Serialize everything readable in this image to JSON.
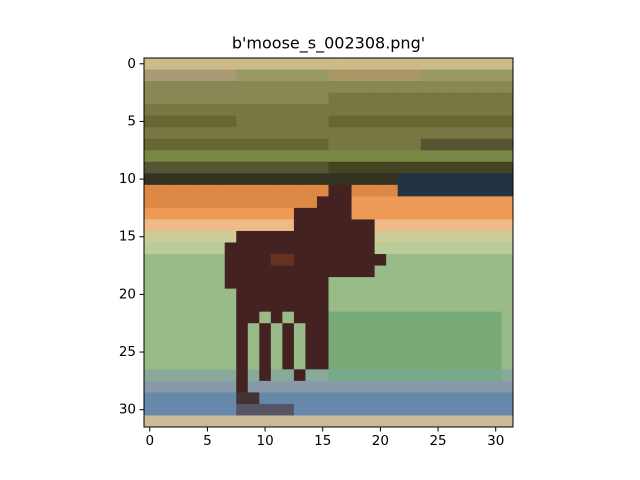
{
  "chart_data": {
    "type": "image",
    "title": "b'moose_s_002308.png'",
    "xlim": [
      -0.5,
      31.5
    ],
    "ylim": [
      31.5,
      -0.5
    ],
    "xticks": [
      0,
      5,
      10,
      15,
      20,
      25,
      30
    ],
    "yticks": [
      0,
      5,
      10,
      15,
      20,
      25,
      30
    ],
    "pixels": [
      [
        "#cb8",
        "#cb8",
        "#cb8",
        "#cb8",
        "#cb8",
        "#cb8",
        "#cb8",
        "#cb8",
        "#cb8",
        "#cb8",
        "#cb8",
        "#cb8",
        "#cb8",
        "#cb8",
        "#cb8",
        "#cb8",
        "#cb8",
        "#cb8",
        "#cb8",
        "#cb8",
        "#cb8",
        "#cb8",
        "#cb8",
        "#cb8",
        "#cb8",
        "#cb8",
        "#cb8",
        "#cb8",
        "#cb8",
        "#cb8",
        "#cb8",
        "#cb8"
      ],
      [
        "#a97",
        "#a97",
        "#a97",
        "#a97",
        "#a97",
        "#a97",
        "#a97",
        "#a97",
        "#996",
        "#996",
        "#996",
        "#996",
        "#996",
        "#996",
        "#996",
        "#996",
        "#a96",
        "#a96",
        "#a96",
        "#a96",
        "#a96",
        "#a96",
        "#a96",
        "#a96",
        "#996",
        "#996",
        "#996",
        "#996",
        "#996",
        "#996",
        "#996",
        "#996"
      ],
      [
        "#885",
        "#885",
        "#885",
        "#885",
        "#885",
        "#885",
        "#885",
        "#885",
        "#885",
        "#885",
        "#885",
        "#885",
        "#885",
        "#885",
        "#885",
        "#885",
        "#885",
        "#885",
        "#885",
        "#885",
        "#885",
        "#885",
        "#885",
        "#885",
        "#885",
        "#885",
        "#885",
        "#885",
        "#885",
        "#885",
        "#885",
        "#885"
      ],
      [
        "#885",
        "#885",
        "#885",
        "#885",
        "#885",
        "#885",
        "#885",
        "#885",
        "#885",
        "#885",
        "#885",
        "#885",
        "#885",
        "#885",
        "#885",
        "#885",
        "#774",
        "#774",
        "#774",
        "#774",
        "#774",
        "#774",
        "#774",
        "#774",
        "#774",
        "#774",
        "#774",
        "#774",
        "#774",
        "#774",
        "#774",
        "#774"
      ],
      [
        "#774",
        "#774",
        "#774",
        "#774",
        "#774",
        "#774",
        "#774",
        "#774",
        "#774",
        "#774",
        "#774",
        "#774",
        "#774",
        "#774",
        "#774",
        "#774",
        "#774",
        "#774",
        "#774",
        "#774",
        "#774",
        "#774",
        "#774",
        "#774",
        "#774",
        "#774",
        "#774",
        "#774",
        "#774",
        "#774",
        "#774",
        "#774"
      ],
      [
        "#663",
        "#663",
        "#663",
        "#663",
        "#663",
        "#663",
        "#663",
        "#663",
        "#774",
        "#774",
        "#774",
        "#774",
        "#774",
        "#774",
        "#774",
        "#774",
        "#663",
        "#663",
        "#663",
        "#663",
        "#663",
        "#663",
        "#663",
        "#663",
        "#663",
        "#663",
        "#663",
        "#663",
        "#663",
        "#663",
        "#663",
        "#663"
      ],
      [
        "#774",
        "#774",
        "#774",
        "#774",
        "#774",
        "#774",
        "#774",
        "#774",
        "#774",
        "#774",
        "#774",
        "#774",
        "#774",
        "#774",
        "#774",
        "#774",
        "#774",
        "#774",
        "#774",
        "#774",
        "#774",
        "#774",
        "#774",
        "#774",
        "#774",
        "#774",
        "#774",
        "#774",
        "#774",
        "#774",
        "#774",
        "#774"
      ],
      [
        "#663",
        "#663",
        "#663",
        "#663",
        "#663",
        "#663",
        "#663",
        "#663",
        "#663",
        "#663",
        "#663",
        "#663",
        "#663",
        "#663",
        "#663",
        "#663",
        "#774",
        "#774",
        "#774",
        "#774",
        "#774",
        "#774",
        "#774",
        "#774",
        "#553",
        "#553",
        "#553",
        "#553",
        "#553",
        "#553",
        "#553",
        "#553"
      ],
      [
        "#784",
        "#784",
        "#784",
        "#784",
        "#784",
        "#784",
        "#784",
        "#784",
        "#784",
        "#784",
        "#784",
        "#784",
        "#784",
        "#784",
        "#784",
        "#784",
        "#784",
        "#784",
        "#784",
        "#784",
        "#784",
        "#784",
        "#784",
        "#784",
        "#784",
        "#784",
        "#784",
        "#784",
        "#784",
        "#784",
        "#784",
        "#784"
      ],
      [
        "#553",
        "#553",
        "#553",
        "#553",
        "#553",
        "#553",
        "#553",
        "#553",
        "#553",
        "#553",
        "#553",
        "#553",
        "#553",
        "#553",
        "#553",
        "#553",
        "#442",
        "#442",
        "#442",
        "#442",
        "#442",
        "#442",
        "#442",
        "#442",
        "#442",
        "#442",
        "#442",
        "#442",
        "#442",
        "#442",
        "#442",
        "#442"
      ],
      [
        "#332",
        "#332",
        "#332",
        "#332",
        "#332",
        "#332",
        "#332",
        "#332",
        "#332",
        "#332",
        "#332",
        "#332",
        "#332",
        "#332",
        "#332",
        "#332",
        "#332",
        "#332",
        "#332",
        "#332",
        "#332",
        "#332",
        "#234",
        "#234",
        "#234",
        "#234",
        "#234",
        "#234",
        "#234",
        "#234",
        "#234",
        "#234"
      ],
      [
        "#d84",
        "#d84",
        "#d84",
        "#d84",
        "#d84",
        "#d84",
        "#d84",
        "#d84",
        "#d84",
        "#d84",
        "#d84",
        "#d84",
        "#d84",
        "#d84",
        "#d84",
        "#d84",
        "#422",
        "#422",
        "#d84",
        "#d84",
        "#d84",
        "#d84",
        "#234",
        "#234",
        "#234",
        "#234",
        "#234",
        "#234",
        "#234",
        "#234",
        "#234",
        "#234"
      ],
      [
        "#d84",
        "#d84",
        "#d84",
        "#d84",
        "#d84",
        "#d84",
        "#d84",
        "#d84",
        "#d84",
        "#d84",
        "#d84",
        "#d84",
        "#d84",
        "#d84",
        "#d84",
        "#422",
        "#422",
        "#422",
        "#e95",
        "#e95",
        "#e95",
        "#e95",
        "#e95",
        "#e95",
        "#e95",
        "#e95",
        "#e95",
        "#e95",
        "#e95",
        "#e95",
        "#e95",
        "#e95"
      ],
      [
        "#e95",
        "#e95",
        "#e95",
        "#e95",
        "#e95",
        "#e95",
        "#e95",
        "#e95",
        "#e95",
        "#e95",
        "#e95",
        "#e95",
        "#e95",
        "#422",
        "#422",
        "#422",
        "#422",
        "#422",
        "#e95",
        "#e95",
        "#e95",
        "#e95",
        "#e95",
        "#e95",
        "#e95",
        "#e95",
        "#e95",
        "#e95",
        "#e95",
        "#e95",
        "#e95",
        "#e95"
      ],
      [
        "#eb8",
        "#eb8",
        "#eb8",
        "#eb8",
        "#eb8",
        "#eb8",
        "#eb8",
        "#eb8",
        "#eb8",
        "#eb8",
        "#eb8",
        "#eb8",
        "#eb8",
        "#422",
        "#422",
        "#422",
        "#422",
        "#422",
        "#422",
        "#422",
        "#eb8",
        "#eb8",
        "#eb8",
        "#eb8",
        "#eb8",
        "#eb8",
        "#eb8",
        "#eb8",
        "#eb8",
        "#eb8",
        "#eb8",
        "#eb8"
      ],
      [
        "#cc9",
        "#cc9",
        "#cc9",
        "#cc9",
        "#cc9",
        "#cc9",
        "#cc9",
        "#cc9",
        "#422",
        "#422",
        "#422",
        "#422",
        "#422",
        "#422",
        "#422",
        "#422",
        "#422",
        "#422",
        "#422",
        "#422",
        "#cc9",
        "#cc9",
        "#cc9",
        "#cc9",
        "#cc9",
        "#cc9",
        "#cc9",
        "#cc9",
        "#cc9",
        "#cc9",
        "#cc9",
        "#cc9"
      ],
      [
        "#bc9",
        "#bc9",
        "#bc9",
        "#bc9",
        "#bc9",
        "#bc9",
        "#bc9",
        "#422",
        "#422",
        "#422",
        "#422",
        "#422",
        "#422",
        "#422",
        "#422",
        "#422",
        "#422",
        "#422",
        "#422",
        "#422",
        "#bc9",
        "#bc9",
        "#bc9",
        "#bc9",
        "#bc9",
        "#bc9",
        "#bc9",
        "#bc9",
        "#bc9",
        "#bc9",
        "#bc9",
        "#bc9"
      ],
      [
        "#9b8",
        "#9b8",
        "#9b8",
        "#9b8",
        "#9b8",
        "#9b8",
        "#9b8",
        "#422",
        "#422",
        "#422",
        "#422",
        "#632",
        "#632",
        "#422",
        "#422",
        "#422",
        "#422",
        "#422",
        "#422",
        "#422",
        "#422",
        "#9b8",
        "#9b8",
        "#9b8",
        "#9b8",
        "#9b8",
        "#9b8",
        "#9b8",
        "#9b8",
        "#9b8",
        "#9b8",
        "#9b8"
      ],
      [
        "#9b8",
        "#9b8",
        "#9b8",
        "#9b8",
        "#9b8",
        "#9b8",
        "#9b8",
        "#422",
        "#422",
        "#422",
        "#422",
        "#422",
        "#422",
        "#422",
        "#422",
        "#422",
        "#422",
        "#422",
        "#422",
        "#422",
        "#9b8",
        "#9b8",
        "#9b8",
        "#9b8",
        "#9b8",
        "#9b8",
        "#9b8",
        "#9b8",
        "#9b8",
        "#9b8",
        "#9b8",
        "#9b8"
      ],
      [
        "#9b8",
        "#9b8",
        "#9b8",
        "#9b8",
        "#9b8",
        "#9b8",
        "#9b8",
        "#422",
        "#422",
        "#422",
        "#422",
        "#422",
        "#422",
        "#422",
        "#422",
        "#422",
        "#9b8",
        "#9b8",
        "#9b8",
        "#9b8",
        "#9b8",
        "#9b8",
        "#9b8",
        "#9b8",
        "#9b8",
        "#9b8",
        "#9b8",
        "#9b8",
        "#9b8",
        "#9b8",
        "#9b8",
        "#9b8"
      ],
      [
        "#9b8",
        "#9b8",
        "#9b8",
        "#9b8",
        "#9b8",
        "#9b8",
        "#9b8",
        "#9b8",
        "#422",
        "#422",
        "#422",
        "#422",
        "#422",
        "#422",
        "#422",
        "#422",
        "#9b8",
        "#9b8",
        "#9b8",
        "#9b8",
        "#9b8",
        "#9b8",
        "#9b8",
        "#9b8",
        "#9b8",
        "#9b8",
        "#9b8",
        "#9b8",
        "#9b8",
        "#9b8",
        "#9b8",
        "#9b8"
      ],
      [
        "#9b8",
        "#9b8",
        "#9b8",
        "#9b8",
        "#9b8",
        "#9b8",
        "#9b8",
        "#9b8",
        "#422",
        "#422",
        "#422",
        "#422",
        "#422",
        "#422",
        "#422",
        "#422",
        "#9b8",
        "#9b8",
        "#9b8",
        "#9b8",
        "#9b8",
        "#9b8",
        "#9b8",
        "#9b8",
        "#9b8",
        "#9b8",
        "#9b8",
        "#9b8",
        "#9b8",
        "#9b8",
        "#9b8",
        "#9b8"
      ],
      [
        "#9b8",
        "#9b8",
        "#9b8",
        "#9b8",
        "#9b8",
        "#9b8",
        "#9b8",
        "#9b8",
        "#422",
        "#422",
        "#9b8",
        "#422",
        "#9b8",
        "#422",
        "#422",
        "#422",
        "#7a7",
        "#7a7",
        "#7a7",
        "#7a7",
        "#7a7",
        "#7a7",
        "#7a7",
        "#7a7",
        "#7a7",
        "#7a7",
        "#7a7",
        "#7a7",
        "#7a7",
        "#7a7",
        "#7a7",
        "#9b8"
      ],
      [
        "#9b8",
        "#9b8",
        "#9b8",
        "#9b8",
        "#9b8",
        "#9b8",
        "#9b8",
        "#9b8",
        "#422",
        "#9b8",
        "#422",
        "#9b8",
        "#422",
        "#9b8",
        "#422",
        "#422",
        "#7a7",
        "#7a7",
        "#7a7",
        "#7a7",
        "#7a7",
        "#7a7",
        "#7a7",
        "#7a7",
        "#7a7",
        "#7a7",
        "#7a7",
        "#7a7",
        "#7a7",
        "#7a7",
        "#7a7",
        "#9b8"
      ],
      [
        "#9b8",
        "#9b8",
        "#9b8",
        "#9b8",
        "#9b8",
        "#9b8",
        "#9b8",
        "#9b8",
        "#422",
        "#9b8",
        "#422",
        "#9b8",
        "#422",
        "#9b8",
        "#422",
        "#422",
        "#7a7",
        "#7a7",
        "#7a7",
        "#7a7",
        "#7a7",
        "#7a7",
        "#7a7",
        "#7a7",
        "#7a7",
        "#7a7",
        "#7a7",
        "#7a7",
        "#7a7",
        "#7a7",
        "#7a7",
        "#9b8"
      ],
      [
        "#9b8",
        "#9b8",
        "#9b8",
        "#9b8",
        "#9b8",
        "#9b8",
        "#9b8",
        "#9b8",
        "#422",
        "#9b8",
        "#422",
        "#9b8",
        "#422",
        "#9b8",
        "#422",
        "#422",
        "#7a7",
        "#7a7",
        "#7a7",
        "#7a7",
        "#7a7",
        "#7a7",
        "#7a7",
        "#7a7",
        "#7a7",
        "#7a7",
        "#7a7",
        "#7a7",
        "#7a7",
        "#7a7",
        "#7a7",
        "#9b8"
      ],
      [
        "#9b8",
        "#9b8",
        "#9b8",
        "#9b8",
        "#9b8",
        "#9b8",
        "#9b8",
        "#9b8",
        "#422",
        "#9b8",
        "#422",
        "#9b8",
        "#422",
        "#9b8",
        "#422",
        "#422",
        "#7a7",
        "#7a7",
        "#7a7",
        "#7a7",
        "#7a7",
        "#7a7",
        "#7a7",
        "#7a7",
        "#7a7",
        "#7a7",
        "#7a7",
        "#7a7",
        "#7a7",
        "#7a7",
        "#7a7",
        "#9b8"
      ],
      [
        "#8a9",
        "#8a9",
        "#8a9",
        "#8a9",
        "#8a9",
        "#8a9",
        "#8a9",
        "#8a9",
        "#422",
        "#8a9",
        "#422",
        "#8a9",
        "#8a9",
        "#422",
        "#8a9",
        "#8a9",
        "#7a8",
        "#7a8",
        "#7a8",
        "#7a8",
        "#7a8",
        "#7a8",
        "#7a8",
        "#7a8",
        "#7a8",
        "#7a8",
        "#7a8",
        "#7a8",
        "#7a8",
        "#7a8",
        "#7a8",
        "#8a9"
      ],
      [
        "#89a",
        "#89a",
        "#89a",
        "#89a",
        "#89a",
        "#89a",
        "#89a",
        "#89a",
        "#422",
        "#89a",
        "#89a",
        "#89a",
        "#89a",
        "#89a",
        "#89a",
        "#89a",
        "#89a",
        "#89a",
        "#89a",
        "#89a",
        "#89a",
        "#89a",
        "#89a",
        "#89a",
        "#89a",
        "#89a",
        "#89a",
        "#89a",
        "#89a",
        "#89a",
        "#89a",
        "#89a"
      ],
      [
        "#68a",
        "#68a",
        "#68a",
        "#68a",
        "#68a",
        "#68a",
        "#68a",
        "#68a",
        "#433",
        "#433",
        "#68a",
        "#68a",
        "#68a",
        "#68a",
        "#68a",
        "#68a",
        "#68a",
        "#68a",
        "#68a",
        "#68a",
        "#68a",
        "#68a",
        "#68a",
        "#68a",
        "#68a",
        "#68a",
        "#68a",
        "#68a",
        "#68a",
        "#68a",
        "#68a",
        "#68a"
      ],
      [
        "#68a",
        "#68a",
        "#68a",
        "#68a",
        "#68a",
        "#68a",
        "#68a",
        "#68a",
        "#556",
        "#556",
        "#556",
        "#556",
        "#556",
        "#68a",
        "#68a",
        "#68a",
        "#68a",
        "#68a",
        "#68a",
        "#68a",
        "#68a",
        "#68a",
        "#68a",
        "#68a",
        "#68a",
        "#68a",
        "#68a",
        "#68a",
        "#68a",
        "#68a",
        "#68a",
        "#68a"
      ],
      [
        "#cb9",
        "#cb9",
        "#cb9",
        "#cb9",
        "#cb9",
        "#cb9",
        "#cb9",
        "#cb9",
        "#cb9",
        "#cb9",
        "#cb9",
        "#cb9",
        "#cb9",
        "#cb9",
        "#cb9",
        "#cb9",
        "#cb9",
        "#cb9",
        "#cb9",
        "#cb9",
        "#cb9",
        "#cb9",
        "#cb9",
        "#cb9",
        "#cb9",
        "#cb9",
        "#cb9",
        "#cb9",
        "#cb9",
        "#cb9",
        "#cb9",
        "#cb9"
      ]
    ]
  }
}
